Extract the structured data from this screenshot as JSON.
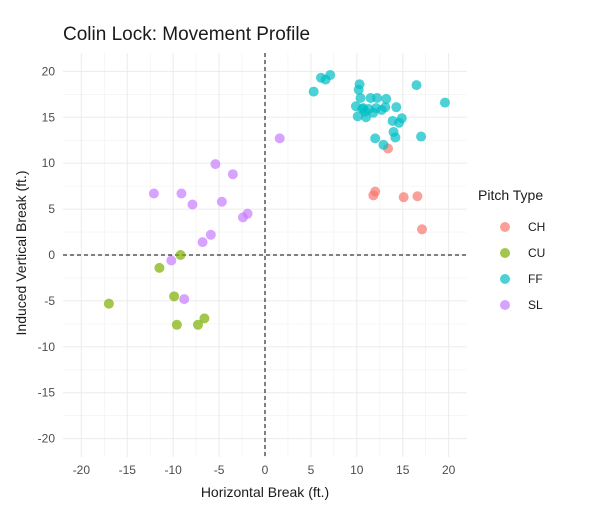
{
  "chart_data": {
    "type": "scatter",
    "title": "Colin Lock: Movement Profile",
    "xlabel": "Horizontal Break (ft.)",
    "ylabel": "Induced Vertical Break (ft.)",
    "xlim": [
      -22,
      22
    ],
    "ylim": [
      -22,
      22
    ],
    "x_ticks": [
      -20,
      -15,
      -10,
      -5,
      0,
      5,
      10,
      15,
      20
    ],
    "y_ticks": [
      -20,
      -15,
      -10,
      -5,
      0,
      5,
      10,
      15,
      20
    ],
    "grid": true,
    "reference_lines": {
      "x": 0,
      "y": 0,
      "style": "dashed"
    },
    "legend": {
      "title": "Pitch Type",
      "position": "right"
    },
    "series": [
      {
        "name": "CH",
        "color": "#F8766D",
        "points": [
          [
            11.8,
            6.5
          ],
          [
            12.0,
            6.9
          ],
          [
            13.4,
            11.6
          ],
          [
            15.1,
            6.3
          ],
          [
            16.6,
            6.4
          ],
          [
            17.1,
            2.8
          ]
        ]
      },
      {
        "name": "CU",
        "color": "#7CAE00",
        "points": [
          [
            -17.0,
            -5.3
          ],
          [
            -11.5,
            -1.4
          ],
          [
            -9.2,
            0.0
          ],
          [
            -9.9,
            -4.5
          ],
          [
            -9.6,
            -7.6
          ],
          [
            -7.3,
            -7.6
          ],
          [
            -6.6,
            -6.9
          ]
        ]
      },
      {
        "name": "FF",
        "color": "#00BFC4",
        "points": [
          [
            5.3,
            17.8
          ],
          [
            6.1,
            19.3
          ],
          [
            6.6,
            19.1
          ],
          [
            7.1,
            19.6
          ],
          [
            9.9,
            16.2
          ],
          [
            10.1,
            15.1
          ],
          [
            10.2,
            18.0
          ],
          [
            10.3,
            18.6
          ],
          [
            10.4,
            17.1
          ],
          [
            10.7,
            16.0
          ],
          [
            10.9,
            15.6
          ],
          [
            11.3,
            15.9
          ],
          [
            11.5,
            17.1
          ],
          [
            11.8,
            15.5
          ],
          [
            12.1,
            16.0
          ],
          [
            12.0,
            12.7
          ],
          [
            12.2,
            17.1
          ],
          [
            12.7,
            15.8
          ],
          [
            12.9,
            12.0
          ],
          [
            13.1,
            16.1
          ],
          [
            13.2,
            17.0
          ],
          [
            13.9,
            14.6
          ],
          [
            14.0,
            13.4
          ],
          [
            14.2,
            12.8
          ],
          [
            14.3,
            16.1
          ],
          [
            14.6,
            14.4
          ],
          [
            14.9,
            14.9
          ],
          [
            16.5,
            18.5
          ],
          [
            17.0,
            12.9
          ],
          [
            19.6,
            16.6
          ],
          [
            11.0,
            15.0
          ],
          [
            10.6,
            15.9
          ]
        ]
      },
      {
        "name": "SL",
        "color": "#C77CFF",
        "points": [
          [
            1.6,
            12.7
          ],
          [
            -3.5,
            8.8
          ],
          [
            -5.4,
            9.9
          ],
          [
            -12.1,
            6.7
          ],
          [
            -9.1,
            6.7
          ],
          [
            -7.9,
            5.5
          ],
          [
            -4.7,
            5.8
          ],
          [
            -2.4,
            4.1
          ],
          [
            -1.9,
            4.5
          ],
          [
            -5.9,
            2.2
          ],
          [
            -6.8,
            1.4
          ],
          [
            -10.2,
            -0.6
          ],
          [
            -8.8,
            -4.8
          ]
        ]
      }
    ]
  }
}
